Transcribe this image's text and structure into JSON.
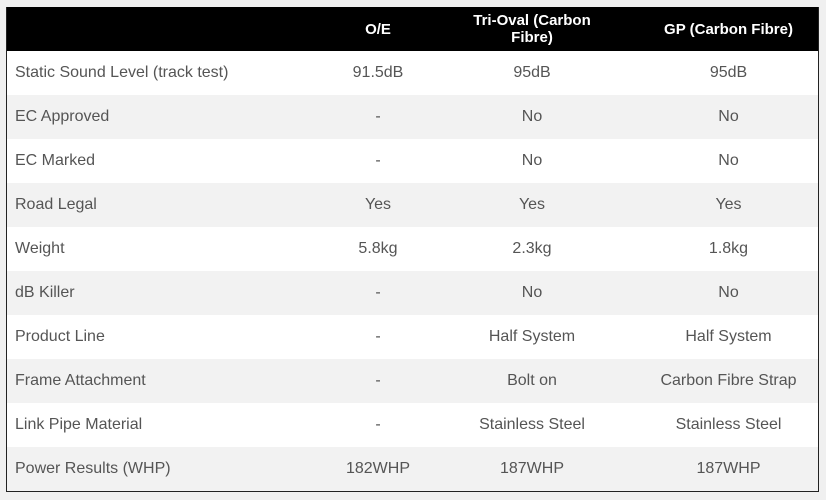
{
  "table": {
    "headers": [
      "",
      "O/E",
      "Tri-Oval (Carbon Fibre)",
      "GP (Carbon Fibre)"
    ],
    "rows": [
      [
        "Static Sound Level (track test)",
        "91.5dB",
        "95dB",
        "95dB"
      ],
      [
        "EC Approved",
        "-",
        "No",
        "No"
      ],
      [
        "EC Marked",
        "-",
        "No",
        "No"
      ],
      [
        "Road Legal",
        "Yes",
        "Yes",
        "Yes"
      ],
      [
        "Weight",
        "5.8kg",
        "2.3kg",
        "1.8kg"
      ],
      [
        "dB Killer",
        "-",
        "No",
        "No"
      ],
      [
        "Product Line",
        "-",
        "Half System",
        "Half System"
      ],
      [
        "Frame Attachment",
        "-",
        "Bolt on",
        "Carbon Fibre Strap"
      ],
      [
        "Link Pipe Material",
        "-",
        "Stainless Steel",
        "Stainless Steel"
      ],
      [
        "Power Results (WHP)",
        "182WHP",
        "187WHP",
        "187WHP"
      ]
    ]
  }
}
